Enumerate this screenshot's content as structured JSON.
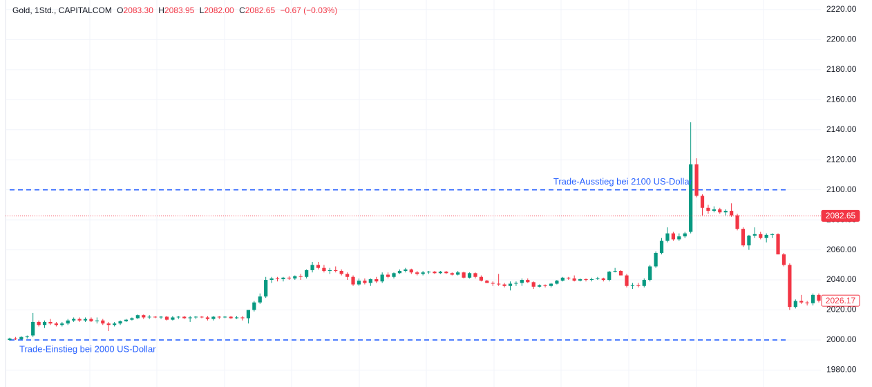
{
  "chart_data": {
    "type": "candlestick",
    "header": {
      "symbol": "Gold, 1Std., CAPITALCOM",
      "o_label": "O",
      "open": "2083.30",
      "h_label": "H",
      "high": "2083.95",
      "l_label": "L",
      "low": "2082.00",
      "c_label": "C",
      "close": "2082.65",
      "change": "−0.67 (−0.03%)"
    },
    "up_color": "#089981",
    "down_color": "#f23645",
    "ylim": [
      1968.7,
      2226.4
    ],
    "yticks": [
      {
        "value": 1980,
        "label": "1980.00"
      },
      {
        "value": 2000,
        "label": "2000.00"
      },
      {
        "value": 2020,
        "label": "2020.00"
      },
      {
        "value": 2040,
        "label": "2040.00"
      },
      {
        "value": 2060,
        "label": "2060.00"
      },
      {
        "value": 2080,
        "label": "2080.00"
      },
      {
        "value": 2100,
        "label": "2100.00"
      },
      {
        "value": 2120,
        "label": "2120.00"
      },
      {
        "value": 2140,
        "label": "2140.00"
      },
      {
        "value": 2160,
        "label": "2160.00"
      },
      {
        "value": 2180,
        "label": "2180.00"
      },
      {
        "value": 2200,
        "label": "2200.00"
      },
      {
        "value": 2220,
        "label": "2220.00"
      }
    ],
    "grid": true,
    "hlines": [
      {
        "value": 2100,
        "label": "Trade-Ausstieg bei 2100 US-Dollar",
        "color": "#2962ff"
      },
      {
        "value": 2000,
        "label": "Trade-Einstieg bei 2000 US-Dollar",
        "color": "#2962ff"
      }
    ],
    "price_markers": [
      {
        "value": 2082.65,
        "style": "filled",
        "line": true
      },
      {
        "value": 2026.17,
        "style": "outline",
        "line": false
      }
    ],
    "ohlc": [
      [
        2000,
        2001.5,
        1999.5,
        2001
      ],
      [
        2001,
        2002,
        2000,
        2000.5
      ],
      [
        2000.5,
        2002.5,
        2000,
        2002
      ],
      [
        2002,
        2003,
        2001,
        2002.5
      ],
      [
        2003,
        2018,
        2002,
        2012
      ],
      [
        2012,
        2013,
        2009,
        2010
      ],
      [
        2010,
        2013,
        2008,
        2012
      ],
      [
        2012,
        2014,
        2010,
        2011
      ],
      [
        2011,
        2012,
        2009,
        2010
      ],
      [
        2010,
        2012,
        2009,
        2011
      ],
      [
        2011,
        2014,
        2010,
        2013
      ],
      [
        2013,
        2015,
        2012,
        2014
      ],
      [
        2014,
        2015,
        2012,
        2013
      ],
      [
        2013,
        2015,
        2012,
        2014
      ],
      [
        2014,
        2015,
        2012,
        2012.5
      ],
      [
        2012.5,
        2015,
        2011,
        2013
      ],
      [
        2013,
        2014,
        2010,
        2011
      ],
      [
        2011,
        2012,
        2006,
        2010
      ],
      [
        2010,
        2012,
        2009,
        2011
      ],
      [
        2011,
        2013,
        2010,
        2012.5
      ],
      [
        2012.5,
        2014,
        2012,
        2013.5
      ],
      [
        2013.5,
        2015,
        2013,
        2014.5
      ],
      [
        2014.5,
        2017,
        2014,
        2016.5
      ],
      [
        2016.5,
        2017,
        2014,
        2015
      ],
      [
        2015,
        2016.5,
        2014,
        2015.5
      ],
      [
        2015.5,
        2016,
        2014.5,
        2015
      ],
      [
        2015,
        2016,
        2014,
        2015.5
      ],
      [
        2015.5,
        2016,
        2013,
        2013.5
      ],
      [
        2013.5,
        2016,
        2013,
        2015
      ],
      [
        2015,
        2016,
        2014,
        2015.5
      ],
      [
        2015.5,
        2016,
        2014,
        2014.5
      ],
      [
        2014.5,
        2016,
        2012,
        2015
      ],
      [
        2015,
        2016,
        2014,
        2015.5
      ],
      [
        2015.5,
        2016,
        2014.5,
        2015
      ],
      [
        2015,
        2016,
        2013,
        2014
      ],
      [
        2014,
        2016,
        2013,
        2015.5
      ],
      [
        2015.5,
        2016,
        2014,
        2015
      ],
      [
        2015,
        2016,
        2014.5,
        2015.5
      ],
      [
        2015.5,
        2016,
        2014,
        2014.5
      ],
      [
        2014.5,
        2016,
        2014,
        2015
      ],
      [
        2015,
        2016,
        2013,
        2014.5
      ],
      [
        2014.5,
        2020,
        2011,
        2020
      ],
      [
        2020,
        2026,
        2019,
        2025
      ],
      [
        2025,
        2031,
        2024,
        2029
      ],
      [
        2029,
        2042,
        2028,
        2040
      ],
      [
        2040,
        2042,
        2038,
        2041
      ],
      [
        2041,
        2042,
        2039,
        2040.5
      ],
      [
        2040.5,
        2042,
        2039,
        2041.5
      ],
      [
        2041.5,
        2042.5,
        2040,
        2041
      ],
      [
        2041,
        2043,
        2040,
        2042.5
      ],
      [
        2042.5,
        2044,
        2040,
        2042
      ],
      [
        2042,
        2047,
        2041,
        2046.5
      ],
      [
        2046.5,
        2052,
        2045,
        2050
      ],
      [
        2050,
        2052,
        2047,
        2048
      ],
      [
        2048,
        2050,
        2045,
        2046
      ],
      [
        2046,
        2048,
        2044,
        2046.5
      ],
      [
        2046.5,
        2049,
        2045,
        2046
      ],
      [
        2046,
        2047,
        2043,
        2044
      ],
      [
        2044,
        2045,
        2040,
        2042
      ],
      [
        2042,
        2043,
        2036,
        2037
      ],
      [
        2037,
        2041,
        2036,
        2039.5
      ],
      [
        2039.5,
        2041,
        2037,
        2038
      ],
      [
        2038,
        2041,
        2036,
        2040.5
      ],
      [
        2040.5,
        2042,
        2038,
        2039
      ],
      [
        2039,
        2045,
        2038,
        2043.5
      ],
      [
        2043.5,
        2045,
        2041,
        2042
      ],
      [
        2042,
        2045,
        2041,
        2044.5
      ],
      [
        2044.5,
        2047,
        2044,
        2046
      ],
      [
        2046,
        2048,
        2045,
        2047
      ],
      [
        2047,
        2047.5,
        2044,
        2045
      ],
      [
        2045,
        2046,
        2043,
        2044
      ],
      [
        2044,
        2046,
        2043,
        2045
      ],
      [
        2045,
        2046,
        2044,
        2045.5
      ],
      [
        2045.5,
        2046,
        2044,
        2044.5
      ],
      [
        2044.5,
        2046,
        2044,
        2045.5
      ],
      [
        2045.5,
        2046,
        2044,
        2044.5
      ],
      [
        2044.5,
        2045,
        2043,
        2043.5
      ],
      [
        2043.5,
        2046,
        2043,
        2045
      ],
      [
        2045,
        2045.5,
        2041,
        2041.5
      ],
      [
        2041.5,
        2045,
        2041,
        2044.5
      ],
      [
        2044.5,
        2045,
        2041,
        2042
      ],
      [
        2042,
        2043,
        2039,
        2039.5
      ],
      [
        2039.5,
        2040,
        2038,
        2038
      ],
      [
        2038,
        2039,
        2036,
        2037.5
      ],
      [
        2037.5,
        2044,
        2036,
        2037
      ],
      [
        2037,
        2038,
        2035,
        2036
      ],
      [
        2036,
        2039,
        2033,
        2037.5
      ],
      [
        2037.5,
        2039,
        2036,
        2038
      ],
      [
        2038,
        2041,
        2036,
        2040
      ],
      [
        2040,
        2041,
        2038,
        2038.5
      ],
      [
        2038.5,
        2039,
        2034,
        2035.5
      ],
      [
        2035.5,
        2037,
        2035,
        2036.5
      ],
      [
        2036.5,
        2037,
        2035,
        2036
      ],
      [
        2036,
        2038,
        2035,
        2037.5
      ],
      [
        2037.5,
        2040,
        2037,
        2039.5
      ],
      [
        2039.5,
        2042,
        2039,
        2041.5
      ],
      [
        2041.5,
        2042,
        2040,
        2041
      ],
      [
        2041,
        2043,
        2039,
        2039.5
      ],
      [
        2039.5,
        2041,
        2039,
        2040.5
      ],
      [
        2040.5,
        2041,
        2039,
        2040
      ],
      [
        2040,
        2041.5,
        2039,
        2040.5
      ],
      [
        2040.5,
        2042,
        2040,
        2041
      ],
      [
        2041,
        2041.5,
        2039,
        2040
      ],
      [
        2040,
        2046,
        2039,
        2045.5
      ],
      [
        2045.5,
        2048,
        2045,
        2046
      ],
      [
        2046,
        2046.5,
        2043,
        2043
      ],
      [
        2043,
        2044,
        2035,
        2036
      ],
      [
        2036,
        2038,
        2034,
        2036.5
      ],
      [
        2036.5,
        2038,
        2035,
        2036
      ],
      [
        2036,
        2041,
        2035,
        2040
      ],
      [
        2040,
        2050,
        2039,
        2049
      ],
      [
        2049,
        2059,
        2048,
        2058
      ],
      [
        2058,
        2068,
        2057,
        2066
      ],
      [
        2066,
        2075,
        2065,
        2071
      ],
      [
        2071,
        2072,
        2066,
        2067
      ],
      [
        2067,
        2071,
        2066,
        2069
      ],
      [
        2069,
        2072,
        2068,
        2071
      ],
      [
        2072,
        2145,
        2071,
        2117
      ],
      [
        2117,
        2121,
        2095,
        2096
      ],
      [
        2096,
        2097,
        2083,
        2088
      ],
      [
        2088,
        2090,
        2084,
        2086
      ],
      [
        2086,
        2089,
        2085,
        2087
      ],
      [
        2087,
        2088,
        2084,
        2085
      ],
      [
        2085,
        2087,
        2083,
        2086
      ],
      [
        2086,
        2091,
        2082,
        2083
      ],
      [
        2083,
        2084,
        2073,
        2074
      ],
      [
        2074,
        2075,
        2062,
        2063
      ],
      [
        2063,
        2070,
        2060,
        2069.5
      ],
      [
        2069.5,
        2075,
        2068,
        2070.5
      ],
      [
        2070.5,
        2072,
        2067,
        2068
      ],
      [
        2068,
        2071,
        2065,
        2070
      ],
      [
        2070,
        2071,
        2068,
        2070.5
      ],
      [
        2070.5,
        2071,
        2057,
        2057
      ],
      [
        2057,
        2058,
        2049,
        2050
      ],
      [
        2050,
        2051,
        2020,
        2022
      ],
      [
        2022,
        2027,
        2021,
        2026
      ],
      [
        2026,
        2030,
        2024,
        2025
      ],
      [
        2025,
        2026,
        2023,
        2024.5
      ],
      [
        2024.5,
        2031,
        2023,
        2030
      ],
      [
        2030,
        2031,
        2025,
        2026.17
      ]
    ]
  }
}
